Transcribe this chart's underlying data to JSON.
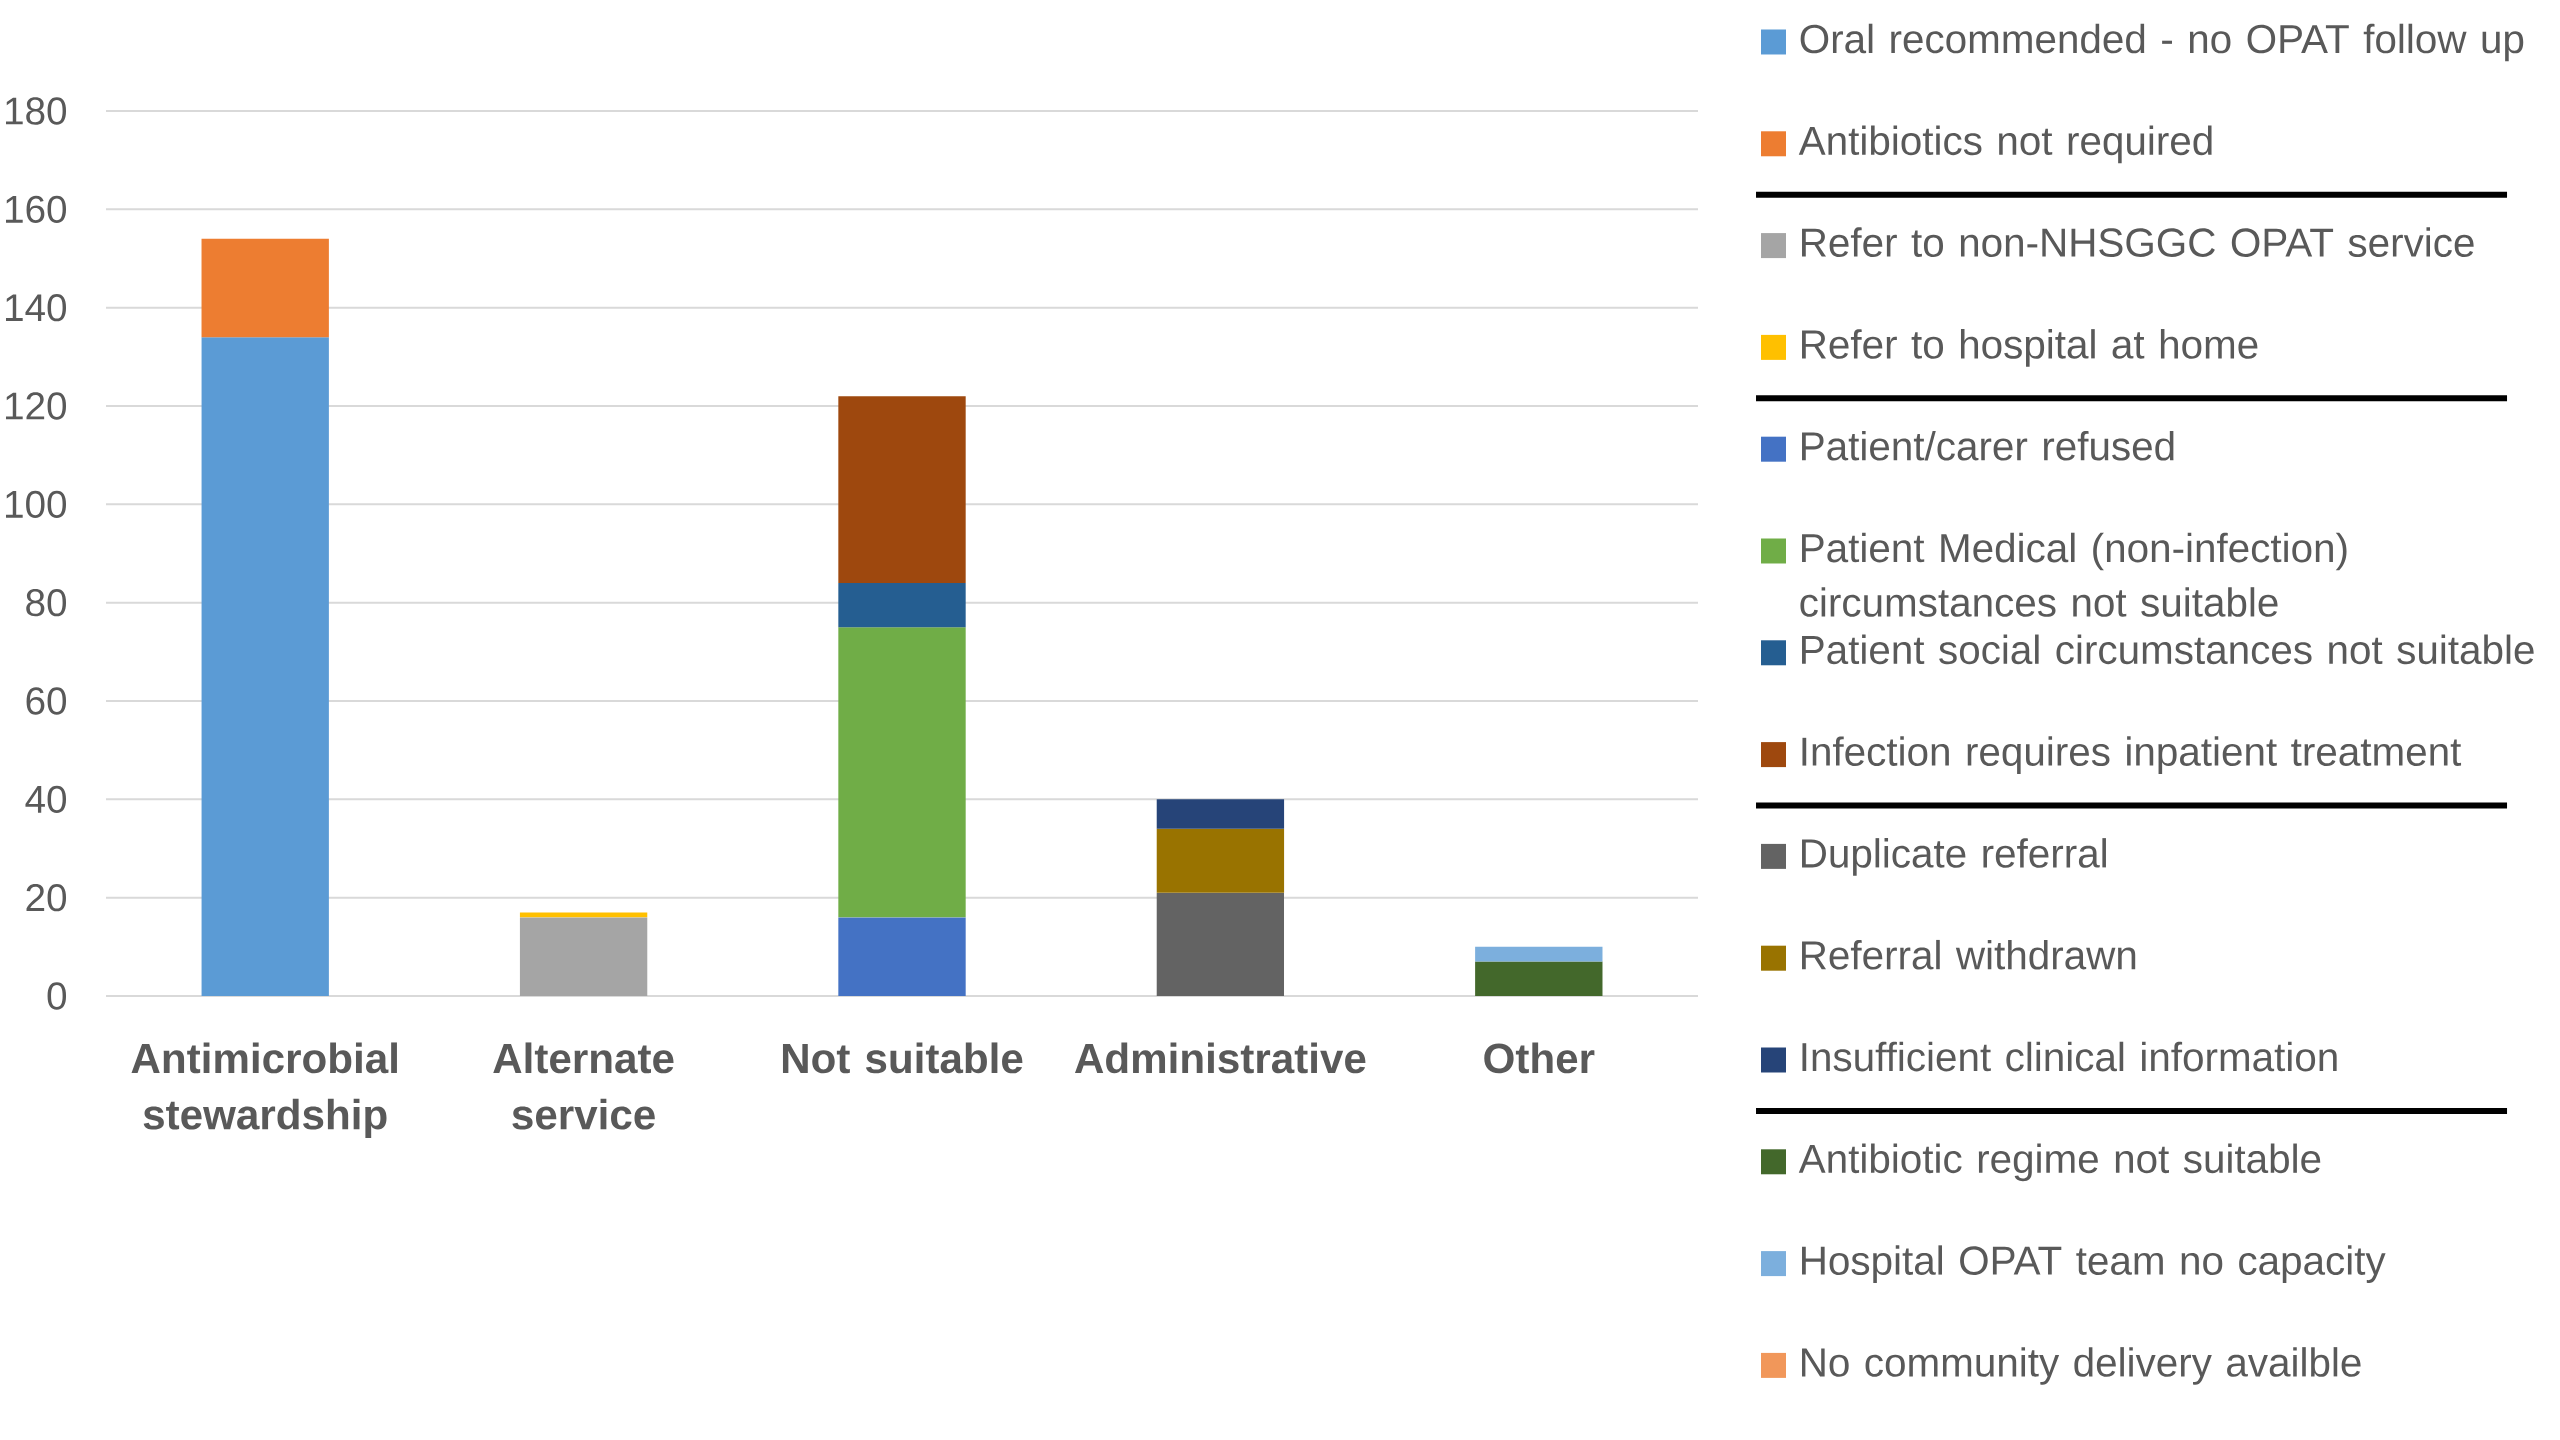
{
  "chart_data": {
    "type": "bar",
    "stacked": true,
    "categories": [
      "Antimicrobial stewardship",
      "Alternate service",
      "Not suitable",
      "Administrative",
      "Other"
    ],
    "series": [
      {
        "name": "Oral recommended - no OPAT follow up",
        "color": "#5b9bd5",
        "values": [
          134,
          null,
          null,
          null,
          null
        ]
      },
      {
        "name": "Antibiotics not required",
        "color": "#ed7d31",
        "values": [
          20,
          null,
          null,
          null,
          null
        ]
      },
      {
        "name": "Refer to non-NHSGGC OPAT service",
        "color": "#a5a5a5",
        "values": [
          null,
          16,
          null,
          null,
          null
        ]
      },
      {
        "name": "Refer to hospital at home",
        "color": "#ffc000",
        "values": [
          null,
          1,
          null,
          null,
          null
        ]
      },
      {
        "name": "Patient/carer refused",
        "color": "#4472c4",
        "values": [
          null,
          null,
          16,
          null,
          null
        ]
      },
      {
        "name": "Patient Medical (non-infection) circumstances not suitable",
        "color": "#70ad47",
        "values": [
          null,
          null,
          59,
          null,
          null
        ]
      },
      {
        "name": "Patient social circumstances not suitable",
        "color": "#255e91",
        "values": [
          null,
          null,
          9,
          null,
          null
        ]
      },
      {
        "name": "Infection requires inpatient treatment",
        "color": "#9e480e",
        "values": [
          null,
          null,
          38,
          null,
          null
        ]
      },
      {
        "name": "Duplicate referral",
        "color": "#636363",
        "values": [
          null,
          null,
          null,
          21,
          null
        ]
      },
      {
        "name": "Referral withdrawn",
        "color": "#997300",
        "values": [
          null,
          null,
          null,
          13,
          null
        ]
      },
      {
        "name": "Insufficient clinical information",
        "color": "#264478",
        "values": [
          null,
          null,
          null,
          6,
          null
        ]
      },
      {
        "name": "Antibiotic regime not suitable",
        "color": "#43682b",
        "values": [
          null,
          null,
          null,
          null,
          7
        ]
      },
      {
        "name": "Hospital OPAT team no capacity",
        "color": "#7cafdd",
        "values": [
          null,
          null,
          null,
          null,
          3
        ]
      },
      {
        "name": "No community delivery availble",
        "color": "#f1975a",
        "values": [
          null,
          null,
          null,
          null,
          null
        ]
      }
    ],
    "ylim": [
      0,
      180
    ],
    "yticks": [
      0,
      20,
      40,
      60,
      80,
      100,
      120,
      140,
      160,
      180
    ],
    "grid": "y",
    "legend": "right"
  }
}
